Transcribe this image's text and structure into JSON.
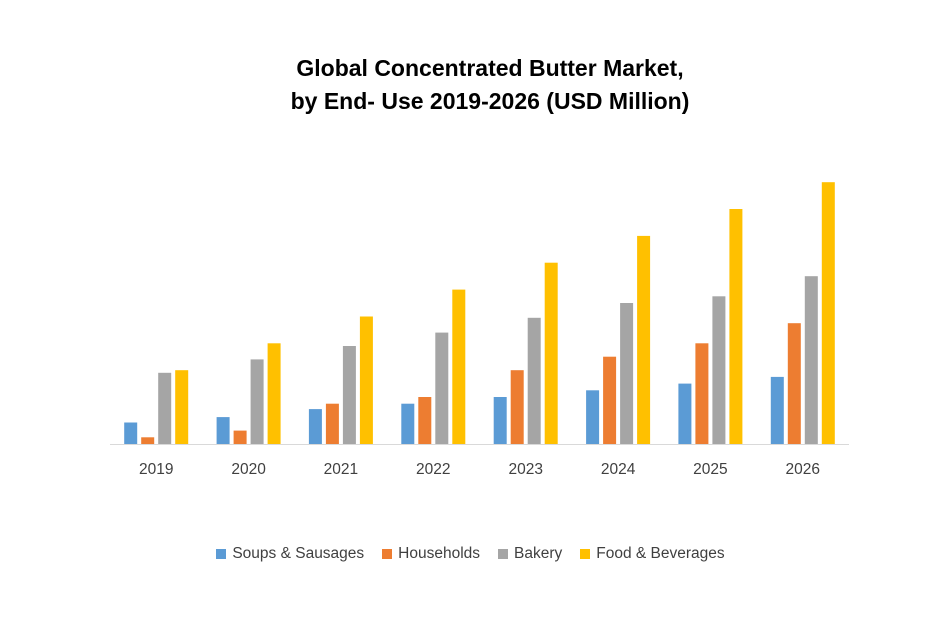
{
  "chart_data": {
    "type": "bar",
    "title": "Global Concentrated Butter Market,",
    "subtitle": "by End- Use 2019-2026 (USD Million)",
    "categories": [
      "2019",
      "2020",
      "2021",
      "2022",
      "2023",
      "2024",
      "2025",
      "2026"
    ],
    "series": [
      {
        "name": "Soups & Sausages",
        "color": "#5B9BD5",
        "values": [
          16,
          20,
          26,
          30,
          35,
          40,
          45,
          50
        ]
      },
      {
        "name": "Households",
        "color": "#ED7D31",
        "values": [
          5,
          10,
          30,
          35,
          55,
          65,
          75,
          90
        ]
      },
      {
        "name": "Bakery",
        "color": "#A5A5A5",
        "values": [
          53,
          63,
          73,
          83,
          94,
          105,
          110,
          125
        ]
      },
      {
        "name": "Food & Beverages",
        "color": "#FFC000",
        "values": [
          55,
          75,
          95,
          115,
          135,
          155,
          175,
          195
        ]
      }
    ],
    "ylim": [
      0,
      200
    ],
    "xlabel": "",
    "ylabel": "",
    "grid": false,
    "legend_position": "bottom"
  }
}
